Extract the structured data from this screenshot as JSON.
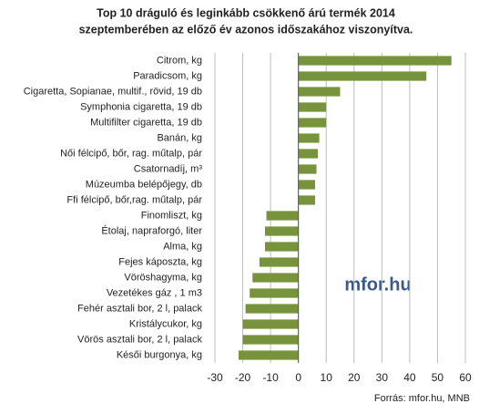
{
  "chart_data": {
    "type": "barh",
    "title": [
      "Top 10 dráguló és leginkább csökkenő árú termék 2014",
      "szeptemberében az előző év azonos időszakához viszonyítva."
    ],
    "categories": [
      "Citrom, kg",
      "Paradicsom, kg",
      "Cigaretta, Sopianae, multif., rövid, 19 db",
      "Symphonia cigaretta, 19 db",
      "Multifilter cigaretta, 19 db",
      "Banán, kg",
      "Női félcipő, bőr, rag. műtalp,  pár",
      "Csatornadíj, m³",
      "Múzeumba belépőjegy, db",
      "Ffi félcipő, bőr,rag. műtalp,  pár",
      "Finomliszt, kg",
      "Étolaj, napraforgó, liter",
      "Alma, kg",
      "Fejes káposzta, kg",
      "Vöröshagyma, kg",
      "Vezetékes gáz , 1 m3",
      "Fehér asztali bor, 2 l, palack",
      "Kristálycukor, kg",
      "Vörös asztali bor, 2 l, palack",
      "Késői burgonya, kg"
    ],
    "values": [
      55,
      46,
      15,
      10,
      10,
      7.5,
      7,
      6.5,
      6,
      6,
      -11.5,
      -12,
      -12,
      -14,
      -16.5,
      -17.5,
      -19,
      -20,
      -20,
      -21.5
    ],
    "color": "#77933c",
    "xlim": [
      -30,
      60
    ],
    "xticks": [
      -30,
      -20,
      -10,
      0,
      10,
      20,
      30,
      40,
      50,
      60
    ],
    "grid": true,
    "watermark": "mfor.hu",
    "source": "Forrás: mfor.hu, MNB"
  }
}
